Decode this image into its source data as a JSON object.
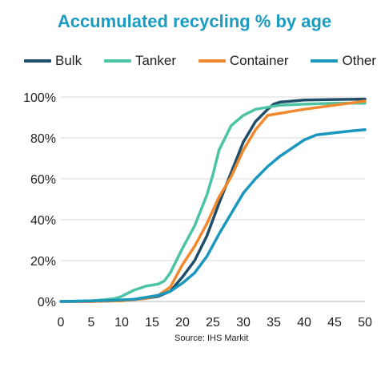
{
  "chart_data": {
    "type": "line",
    "title": "Accumulated recycling % by age",
    "xlabel": "",
    "ylabel": "",
    "xlim": [
      0,
      50
    ],
    "ylim": [
      0,
      100
    ],
    "xticks": [
      "0",
      "5",
      "10",
      "15",
      "20",
      "25",
      "30",
      "35",
      "40",
      "45",
      "50"
    ],
    "yticks": [
      "0%",
      "20%",
      "40%",
      "60%",
      "80%",
      "100%"
    ],
    "grid": "horizontal",
    "legend_position": "top",
    "source": "Source: IHS Markit",
    "series": [
      {
        "name": "Bulk",
        "color": "#1f4e6b",
        "x": [
          0,
          5,
          10,
          14,
          16,
          18,
          20,
          22,
          24,
          26,
          28,
          30,
          32,
          34,
          35,
          36,
          38,
          40,
          45,
          50
        ],
        "y": [
          0,
          0,
          0.5,
          1.5,
          2.5,
          5,
          12,
          20,
          32,
          48,
          63,
          78,
          88,
          94,
          96.5,
          97.5,
          98,
          98.5,
          98.8,
          99
        ]
      },
      {
        "name": "Tanker",
        "color": "#4cc4a4",
        "x": [
          0,
          5,
          7,
          9,
          10,
          12,
          14,
          16,
          17,
          18,
          20,
          22,
          24,
          25,
          26,
          28,
          30,
          32,
          34,
          36,
          40,
          45,
          50
        ],
        "y": [
          0,
          0.3,
          0.8,
          1.5,
          2.5,
          5.5,
          7.5,
          8.5,
          10,
          14,
          26,
          37,
          52,
          62,
          74,
          86,
          91,
          94,
          95,
          96,
          96.5,
          97,
          97
        ]
      },
      {
        "name": "Container",
        "color": "#f0892e",
        "x": [
          0,
          5,
          10,
          14,
          16,
          18,
          20,
          22,
          24,
          26,
          28,
          30,
          32,
          34,
          36,
          38,
          40,
          45,
          50
        ],
        "y": [
          0,
          0,
          0.3,
          1.5,
          3,
          7,
          18,
          27,
          38,
          51,
          61,
          74,
          84,
          91,
          92,
          93,
          94,
          96,
          98
        ]
      },
      {
        "name": "Other",
        "color": "#1a97bd",
        "x": [
          0,
          5,
          8,
          12,
          14,
          16,
          18,
          20,
          22,
          24,
          26,
          28,
          30,
          32,
          34,
          36,
          38,
          40,
          42,
          45,
          48,
          50
        ],
        "y": [
          0,
          0.3,
          0.5,
          1,
          2,
          3,
          5,
          9,
          14,
          22,
          33,
          43,
          53,
          60,
          66,
          71,
          75,
          79,
          81.5,
          82.5,
          83.5,
          84
        ]
      }
    ]
  }
}
